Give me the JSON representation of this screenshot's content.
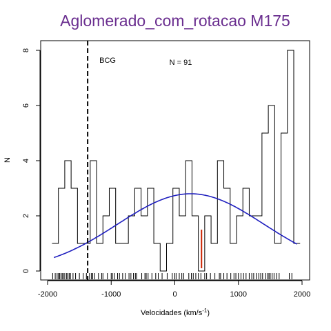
{
  "chart_data": {
    "type": "histogram",
    "title": "Aglomerado_com_rotacao M175",
    "xlabel": "Velocidades  (km/s",
    "xlabel_sup": "-1",
    "xlabel_suffix": ")",
    "ylabel": "N",
    "xlim": [
      -2000,
      2000
    ],
    "ylim": [
      0,
      8
    ],
    "x_ticks": [
      -2000,
      -1000,
      0,
      1000,
      2000
    ],
    "x_tick_labels": [
      "-2000",
      "-1000",
      "0",
      "1000",
      "2000"
    ],
    "y_ticks": [
      0,
      2,
      4,
      6,
      8
    ],
    "y_tick_labels": [
      "0",
      "2",
      "4",
      "6",
      "8"
    ],
    "histogram": {
      "bin_width": 100,
      "bin_left_edges": [
        -1930,
        -1830,
        -1730,
        -1630,
        -1530,
        -1430,
        -1330,
        -1230,
        -1130,
        -1030,
        -930,
        -830,
        -730,
        -630,
        -530,
        -430,
        -330,
        -230,
        -130,
        -30,
        70,
        170,
        270,
        370,
        470,
        570,
        670,
        770,
        870,
        970,
        1070,
        1170,
        1270,
        1370,
        1470,
        1570,
        1670,
        1770,
        1870
      ],
      "counts": [
        1,
        3,
        4,
        3,
        1,
        1,
        4,
        1,
        2,
        3,
        1,
        1,
        2,
        3,
        2,
        3,
        1,
        0,
        1,
        3,
        2,
        4,
        2,
        0,
        2,
        1,
        4,
        3,
        1,
        2,
        3,
        2,
        2,
        5,
        6,
        1,
        5,
        8,
        1
      ]
    },
    "gaussian_fit": {
      "mean": 250,
      "peak": 2.8,
      "sigma": 1150,
      "x_range": [
        -1900,
        1920
      ],
      "color": "#1f1fbf"
    },
    "bcg": {
      "label": "BCG",
      "x": -1370,
      "line_style": "dashed"
    },
    "mean_marker": {
      "x": 420,
      "y_range": [
        0.1,
        1.5
      ],
      "color": "#cc2200"
    },
    "annotation": {
      "text": "N =  91"
    },
    "rug_velocities": [
      -1920,
      -1880,
      -1850,
      -1830,
      -1810,
      -1790,
      -1770,
      -1750,
      -1730,
      -1700,
      -1680,
      -1660,
      -1640,
      -1600,
      -1560,
      -1500,
      -1440,
      -1390,
      -1340,
      -1310,
      -1290,
      -1260,
      -1200,
      -1150,
      -1130,
      -1060,
      -1000,
      -980,
      -950,
      -900,
      -870,
      -820,
      -780,
      -720,
      -690,
      -650,
      -620,
      -600,
      -520,
      -470,
      -450,
      -420,
      -360,
      -300,
      -260,
      -200,
      -120,
      -40,
      0,
      20,
      70,
      110,
      140,
      220,
      260,
      290,
      330,
      370,
      410,
      470,
      500,
      560,
      630,
      700,
      720,
      770,
      820,
      880,
      930,
      960,
      1000,
      1040,
      1080,
      1120,
      1170,
      1210,
      1240,
      1280,
      1320,
      1350,
      1380,
      1430,
      1460,
      1480,
      1500,
      1530,
      1560,
      1600,
      1640,
      1800,
      1840
    ],
    "grid": false,
    "colors": {
      "title": "#6a2e8f",
      "histogram": "#000000",
      "fit": "#1f1fbf",
      "marker": "#cc2200"
    }
  }
}
